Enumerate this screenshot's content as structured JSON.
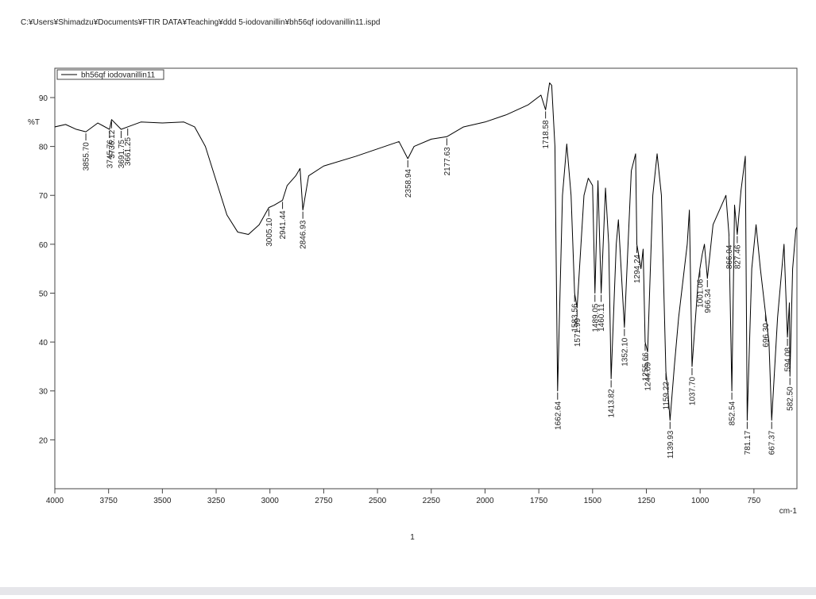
{
  "header": {
    "path": "C:¥Users¥Shimadzu¥Documents¥FTIR DATA¥Teaching¥ddd 5-iodovanillin¥bh56qf iodovanillin11.ispd"
  },
  "footer": {
    "page": "1"
  },
  "chart_data": {
    "type": "line",
    "y_label": "%T",
    "x_label": "cm-1",
    "xlim": [
      4000,
      550
    ],
    "ylim": [
      10,
      96
    ],
    "xticks": [
      4000,
      3750,
      3500,
      3250,
      3000,
      2750,
      2500,
      2250,
      2000,
      1750,
      1500,
      1250,
      1000,
      750
    ],
    "yticks": [
      20,
      30,
      40,
      50,
      60,
      70,
      80,
      90
    ],
    "grid": false,
    "legend": "top-left",
    "x": [
      4000,
      3950,
      3900,
      3855.7,
      3800,
      3745.76,
      3736.12,
      3691.75,
      3661.25,
      3600,
      3500,
      3400,
      3350,
      3300,
      3250,
      3200,
      3150,
      3100,
      3050,
      3005.1,
      2980,
      2941.44,
      2920,
      2880,
      2860,
      2846.93,
      2820,
      2750,
      2600,
      2500,
      2400,
      2358.94,
      2330,
      2250,
      2177.63,
      2100,
      2000,
      1900,
      1800,
      1740,
      1718.58,
      1700,
      1690,
      1675,
      1662.64,
      1640,
      1620,
      1600,
      1583.56,
      1571.99,
      1540,
      1520,
      1500,
      1489.05,
      1475,
      1460.11,
      1440,
      1425,
      1413.82,
      1390,
      1380,
      1352.1,
      1320,
      1300,
      1294.24,
      1275,
      1265,
      1255.66,
      1244.09,
      1220,
      1200,
      1180,
      1159.22,
      1150,
      1139.93,
      1120,
      1100,
      1060,
      1050,
      1037.7,
      1010,
      1001.06,
      990,
      980,
      966.34,
      940,
      900,
      880,
      866.04,
      852.54,
      840,
      827.46,
      810,
      790,
      781.17,
      760,
      740,
      720,
      696.3,
      680,
      667.37,
      640,
      610,
      594.08,
      585,
      582.5,
      570,
      555,
      550
    ],
    "series": [
      {
        "name": "bh56qf iodovanillin11",
        "color": "#000000",
        "values": [
          84,
          84.5,
          83.5,
          83,
          84.8,
          83.5,
          85.5,
          83.5,
          84,
          85,
          84.8,
          85,
          84,
          80,
          73,
          66,
          62.5,
          62,
          64,
          67.5,
          68,
          69,
          72,
          74,
          75.5,
          67,
          74,
          76,
          78,
          79.5,
          81,
          77.5,
          80,
          81.5,
          82,
          84,
          85,
          86.5,
          88.5,
          90.5,
          87.5,
          93,
          92.5,
          80,
          30,
          70,
          80.5,
          70,
          50,
          47,
          70,
          73.5,
          72,
          50,
          73,
          50,
          71.5,
          60,
          32.5,
          60,
          65,
          43,
          75,
          78.5,
          60,
          55,
          59,
          40,
          38,
          70,
          78.5,
          70,
          34,
          30,
          24,
          35,
          45,
          60,
          67,
          35,
          52,
          55,
          58,
          60,
          53,
          64,
          68,
          70,
          62,
          30,
          68,
          62,
          71,
          78,
          24,
          55,
          64,
          55,
          46,
          40,
          24,
          45,
          60,
          41,
          48,
          33,
          55,
          63,
          63.5
        ]
      }
    ],
    "peaks": {
      "values": [
        3855.7,
        3745.76,
        3736.12,
        3691.75,
        3661.25,
        3005.1,
        2941.44,
        2846.93,
        2358.94,
        2177.63,
        1718.58,
        1662.64,
        1583.56,
        1571.99,
        1489.05,
        1460.11,
        1413.82,
        1352.1,
        1294.24,
        1255.66,
        1244.09,
        1159.22,
        1139.93,
        1037.7,
        1001.06,
        966.34,
        866.04,
        852.54,
        827.46,
        781.17,
        696.3,
        667.37,
        594.08,
        582.5
      ],
      "value_labels": [
        "3855.70",
        "3745.76",
        "3736.12",
        "3691.75",
        "3661.25",
        "3005.10",
        "2941.44",
        "2846.93",
        "2358.94",
        "2177.63",
        "1718.58",
        "1662.64",
        "1583.56",
        "1571.99",
        "1489.05",
        "1460.11",
        "1413.82",
        "1352.10",
        "1294.24",
        "1255.66",
        "1244.09",
        "1159.22",
        "1139.93",
        "1037.70",
        "1001.06",
        "966.34",
        "866.04",
        "852.54",
        "827.46",
        "781.17",
        "696.30",
        "667.37",
        "594.08",
        "582.50"
      ],
      "y": [
        83,
        83.5,
        85.5,
        83.5,
        84,
        67.5,
        69,
        67,
        77.5,
        82,
        87.5,
        30,
        50,
        47,
        50,
        50,
        32.5,
        43,
        60,
        40,
        38,
        34,
        24,
        35,
        55,
        53,
        62,
        30,
        62,
        24,
        46,
        24,
        41,
        33
      ]
    }
  }
}
